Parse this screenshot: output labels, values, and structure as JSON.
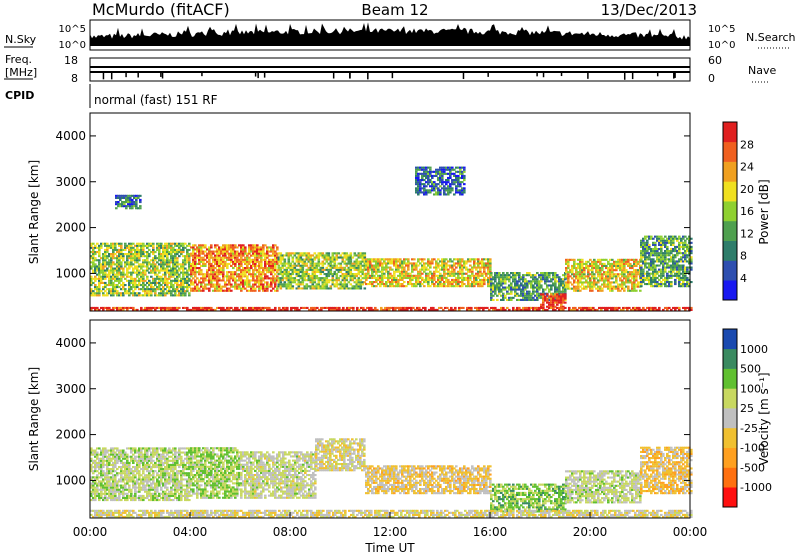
{
  "header": {
    "station": "McMurdo (fitACF)",
    "beam": "Beam 12",
    "date": "13/Dec/2013"
  },
  "strip_labels": {
    "nsky": "N.Sky",
    "nsky_ticks": [
      "10^5",
      "10^0"
    ],
    "nsearch": "N.Search",
    "nsearch_ticks": [
      "10^5",
      "10^0"
    ],
    "freq_line1": "Freq.",
    "freq_line2": "[MHz]",
    "freq_ticks": [
      "18",
      "8"
    ],
    "nave": "Nave",
    "nave_ticks": [
      "60",
      "0"
    ],
    "cpid": "CPID",
    "cpid_text": "normal (fast) 151 RF"
  },
  "colors": {
    "power": [
      "#1818f0",
      "#2e4fb0",
      "#2e7d6a",
      "#4fa04f",
      "#8fd030",
      "#f0e020",
      "#f0a020",
      "#f06020",
      "#e02020"
    ],
    "velocity": [
      "#ff1010",
      "#ff7010",
      "#ffa020",
      "#f0c030",
      "#c0c0c0",
      "#c8d860",
      "#60c030",
      "#3a8a60",
      "#1a4ab0"
    ]
  },
  "chart_data": [
    {
      "type": "heatmap",
      "title": "",
      "ylabel": "Slant Range [km]",
      "xlabel": "",
      "ylim": [
        180,
        4500
      ],
      "xlim": [
        0,
        24
      ],
      "y_ticks": [
        "1000",
        "2000",
        "3000",
        "4000"
      ],
      "x_ticks": [],
      "colorbar_label": "Power [dB]",
      "colorbar_ticks": [
        "4",
        "8",
        "12",
        "16",
        "20",
        "24",
        "28"
      ],
      "colorbar_range": [
        0,
        32
      ],
      "regions": [
        {
          "t0": 0,
          "t1": 4,
          "r0": 500,
          "r1": 1650,
          "level": 16
        },
        {
          "t0": 4,
          "t1": 7.5,
          "r0": 600,
          "r1": 1600,
          "level": 24
        },
        {
          "t0": 7.5,
          "t1": 11,
          "r0": 650,
          "r1": 1450,
          "level": 16
        },
        {
          "t0": 11,
          "t1": 16,
          "r0": 700,
          "r1": 1300,
          "level": 20
        },
        {
          "t0": 16,
          "t1": 19,
          "r0": 400,
          "r1": 1000,
          "level": 12
        },
        {
          "t0": 18,
          "t1": 19,
          "r0": 250,
          "r1": 550,
          "level": 30
        },
        {
          "t0": 19,
          "t1": 22,
          "r0": 600,
          "r1": 1300,
          "level": 20
        },
        {
          "t0": 22,
          "t1": 24,
          "r0": 700,
          "r1": 1800,
          "level": 12
        },
        {
          "t0": 13,
          "t1": 15,
          "r0": 2700,
          "r1": 3300,
          "level": 8
        },
        {
          "t0": 1,
          "t1": 2,
          "r0": 2400,
          "r1": 2700,
          "level": 8
        },
        {
          "t0": 0,
          "t1": 24,
          "r0": 180,
          "r1": 260,
          "level": 30
        }
      ]
    },
    {
      "type": "heatmap",
      "title": "",
      "ylabel": "Slant Range [km]",
      "xlabel": "Time UT",
      "ylim": [
        180,
        4500
      ],
      "xlim": [
        0,
        24
      ],
      "y_ticks": [
        "1000",
        "2000",
        "3000",
        "4000"
      ],
      "x_ticks": [
        "00:00",
        "04:00",
        "08:00",
        "12:00",
        "16:00",
        "20:00",
        "00:00"
      ],
      "colorbar_label": "Velocity [m s⁻¹]",
      "colorbar_ticks": [
        "-1000",
        "-500",
        "-100",
        "-25",
        "25",
        "100",
        "500",
        "1000"
      ],
      "colorbar_range": [
        -1000,
        1000
      ],
      "regions": [
        {
          "t0": 0,
          "t1": 4,
          "r0": 550,
          "r1": 1700,
          "level": 200
        },
        {
          "t0": 4,
          "t1": 6,
          "r0": 600,
          "r1": 1700,
          "level": 300
        },
        {
          "t0": 6,
          "t1": 9,
          "r0": 600,
          "r1": 1600,
          "level": 120
        },
        {
          "t0": 9,
          "t1": 11,
          "r0": 1200,
          "r1": 1900,
          "level": 0
        },
        {
          "t0": 11,
          "t1": 16,
          "r0": 700,
          "r1": 1300,
          "level": -150
        },
        {
          "t0": 16,
          "t1": 19,
          "r0": 300,
          "r1": 900,
          "level": 400
        },
        {
          "t0": 19,
          "t1": 22,
          "r0": 500,
          "r1": 1200,
          "level": 150
        },
        {
          "t0": 22,
          "t1": 24,
          "r0": 700,
          "r1": 1700,
          "level": -200
        },
        {
          "t0": 0,
          "t1": 24,
          "r0": 180,
          "r1": 330,
          "level": 0
        }
      ]
    }
  ]
}
